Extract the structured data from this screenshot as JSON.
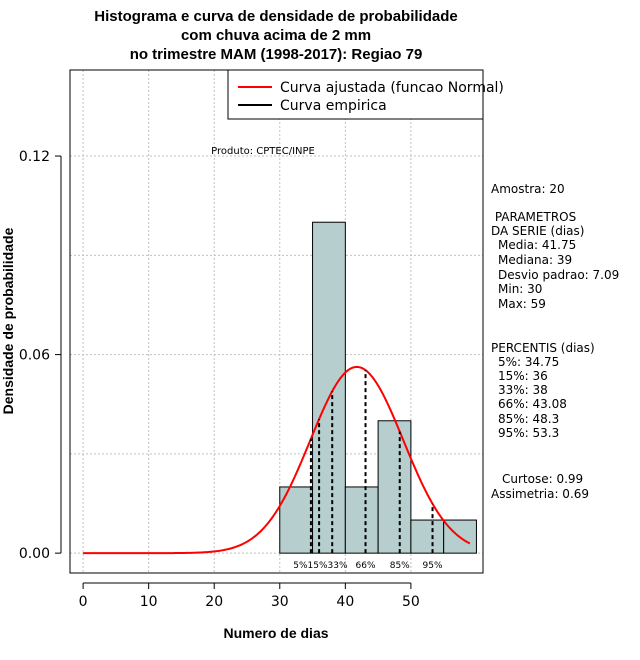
{
  "chart_data": {
    "type": "bar",
    "title": [
      "Histograma e curva de densidade de probabilidade",
      "com chuva acima de 2 mm",
      "no trimestre MAM (1998-2017): Regiao 79"
    ],
    "xlabel": "Numero de dias",
    "ylabel": "Densidade de probabilidade",
    "xlim": [
      -2,
      61
    ],
    "ylim": [
      -0.006,
      0.146
    ],
    "xticks": [
      0,
      10,
      20,
      30,
      40,
      50
    ],
    "yticks": [
      0.0,
      0.06,
      0.12
    ],
    "ytick_labels": [
      "0.00",
      "0.06",
      "0.12"
    ],
    "grid": true,
    "bins": [
      {
        "x0": 30,
        "x1": 35,
        "density": 0.02
      },
      {
        "x0": 35,
        "x1": 40,
        "density": 0.1
      },
      {
        "x0": 40,
        "x1": 45,
        "density": 0.02
      },
      {
        "x0": 45,
        "x1": 50,
        "density": 0.04
      },
      {
        "x0": 50,
        "x1": 55,
        "density": 0.01
      },
      {
        "x0": 55,
        "x1": 60,
        "density": 0.01
      }
    ],
    "normal_curve": {
      "mean": 41.75,
      "sd": 7.09,
      "x_from": 0,
      "x_to": 59,
      "color": "#ff0000"
    },
    "percentile_lines": [
      {
        "label": "5%",
        "x": 34.75
      },
      {
        "label": "15%",
        "x": 36
      },
      {
        "label": "33%",
        "x": 38
      },
      {
        "label": "66%",
        "x": 43.08
      },
      {
        "label": "85%",
        "x": 48.3
      },
      {
        "label": "95%",
        "x": 53.3
      }
    ],
    "percentile_label_text": "5%15%33%",
    "legend": {
      "position": "top-right",
      "entries": [
        {
          "label": "Curva ajustada (funcao Normal)",
          "color": "#ff0000"
        },
        {
          "label": "Curva empirica",
          "color": "#000000"
        }
      ]
    },
    "annotation": "Produto: CPTEC/INPE",
    "bar_color": "#b6cfce"
  },
  "stats": {
    "amostra": "Amostra: 20",
    "param_title": [
      " PARAMETROS",
      "DA SERIE (dias)"
    ],
    "params": [
      "Media: 41.75",
      "Mediana: 39",
      "Desvio padrao: 7.09",
      "Min: 30",
      "Max: 59"
    ],
    "percentis_title": "PERCENTIS (dias)",
    "percentis": [
      "5%: 34.75",
      "15%: 36",
      "33%: 38",
      "66%: 43.08",
      "85%: 48.3",
      "95%: 53.3"
    ],
    "curtose": "Curtose: 0.99",
    "assimetria": "Assimetria: 0.69"
  }
}
